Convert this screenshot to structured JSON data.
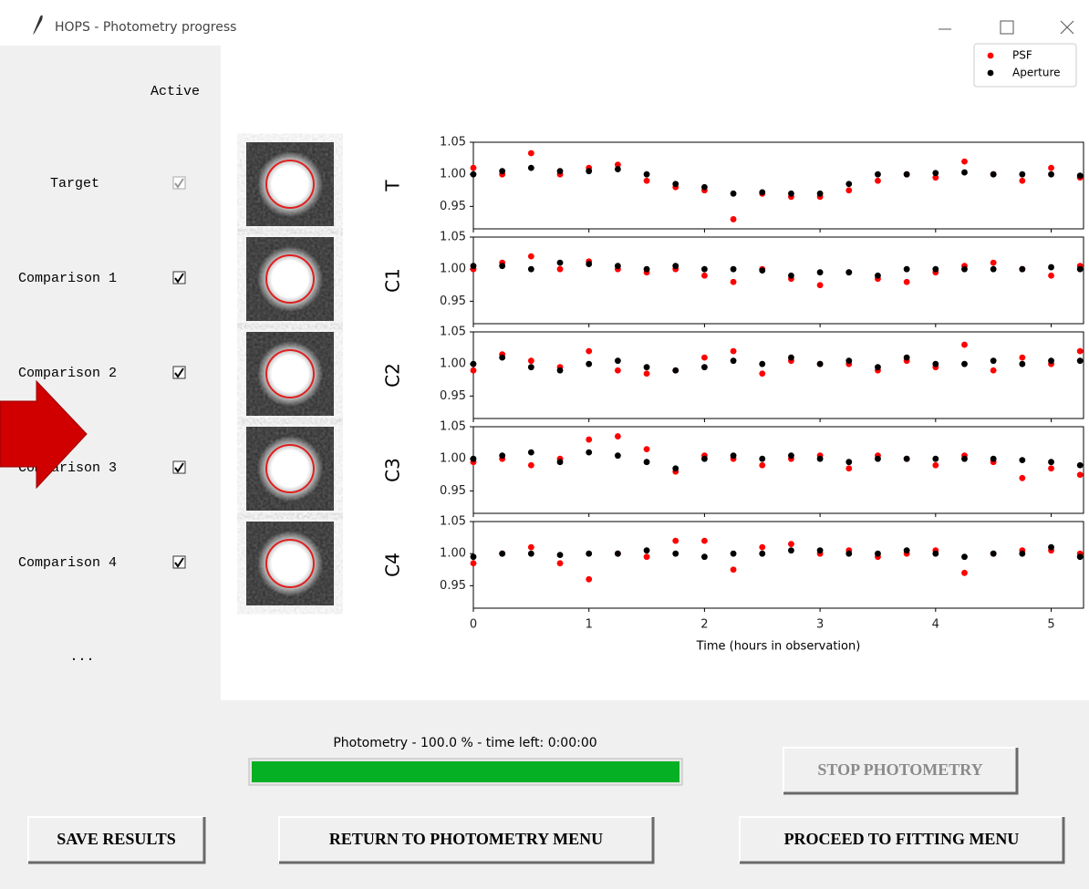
{
  "window": {
    "title": "HOPS - Photometry progress"
  },
  "rows": {
    "header": "Active",
    "labels": [
      "Target",
      "Comparison 1",
      "Comparison 2",
      "Comparison 3",
      "Comparison 4"
    ],
    "more": "..."
  },
  "progress": {
    "label": "Photometry - 100.0 % - time left: 0:00:00"
  },
  "buttons": {
    "stop": "STOP PHOTOMETRY",
    "save": "SAVE RESULTS",
    "return": "RETURN TO PHOTOMETRY MENU",
    "proceed": "PROCEED TO FITTING MENU"
  },
  "chart_data": [
    {
      "type": "scatter",
      "ylabel": "T",
      "legend": "upper right",
      "x": [
        0,
        0.25,
        0.5,
        0.75,
        1,
        1.25,
        1.5,
        1.75,
        2,
        2.25,
        2.5,
        2.75,
        3,
        3.25,
        3.5,
        3.75,
        4,
        4.25,
        4.5,
        4.75,
        5,
        5.25
      ],
      "series": [
        {
          "name": "PSF",
          "color": "#ff0000",
          "values": [
            1.01,
            1.0,
            1.033,
            1.0,
            1.01,
            1.015,
            0.99,
            0.98,
            0.975,
            0.93,
            0.97,
            0.965,
            0.965,
            0.975,
            0.99,
            1.0,
            0.995,
            1.02,
            1.0,
            0.99,
            1.01,
            0.995
          ]
        },
        {
          "name": "Aperture",
          "color": "#000000",
          "values": [
            1.0,
            1.005,
            1.01,
            1.005,
            1.005,
            1.008,
            1.0,
            0.985,
            0.98,
            0.97,
            0.972,
            0.97,
            0.97,
            0.985,
            1.0,
            1.0,
            1.002,
            1.003,
            1.0,
            1.0,
            1.0,
            0.998
          ]
        }
      ],
      "xlim": [
        0,
        5.28
      ],
      "ylim": [
        0.915,
        1.05
      ],
      "yticks": [
        0.95,
        {
          "value": 1,
          "label": "1.00"
        },
        1.05
      ]
    },
    {
      "type": "scatter",
      "ylabel": "C1",
      "x": [
        0,
        0.25,
        0.5,
        0.75,
        1,
        1.25,
        1.5,
        1.75,
        2,
        2.25,
        2.5,
        2.75,
        3,
        3.25,
        3.5,
        3.75,
        4,
        4.25,
        4.5,
        4.75,
        5,
        5.25
      ],
      "series": [
        {
          "name": "PSF",
          "color": "#ff0000",
          "values": [
            1.0,
            1.01,
            1.02,
            1.0,
            1.012,
            1.0,
            0.995,
            1.0,
            0.99,
            0.98,
            1.0,
            0.985,
            0.975,
            0.995,
            0.985,
            0.98,
            0.995,
            1.005,
            1.01,
            1.0,
            0.99,
            1.005
          ]
        },
        {
          "name": "Aperture",
          "color": "#000000",
          "values": [
            1.005,
            1.005,
            1.0,
            1.01,
            1.008,
            1.005,
            1.0,
            1.005,
            1.0,
            1.0,
            0.998,
            0.99,
            0.995,
            0.995,
            0.99,
            1.0,
            1.0,
            1.0,
            1.0,
            1.0,
            1.003,
            1.0
          ]
        }
      ],
      "xlim": [
        0,
        5.28
      ],
      "ylim": [
        0.915,
        1.05
      ],
      "yticks": [
        0.95,
        {
          "value": 1,
          "label": "1.00"
        },
        1.05
      ]
    },
    {
      "type": "scatter",
      "ylabel": "C2",
      "x": [
        0,
        0.25,
        0.5,
        0.75,
        1,
        1.25,
        1.5,
        1.75,
        2,
        2.25,
        2.5,
        2.75,
        3,
        3.25,
        3.5,
        3.75,
        4,
        4.25,
        4.5,
        4.75,
        5,
        5.25
      ],
      "series": [
        {
          "name": "PSF",
          "color": "#ff0000",
          "values": [
            0.99,
            1.015,
            1.005,
            0.995,
            1.02,
            0.99,
            0.985,
            0.99,
            1.01,
            1.02,
            0.985,
            1.005,
            1.0,
            1.0,
            0.99,
            1.005,
            0.995,
            1.03,
            0.99,
            1.01,
            1.0,
            1.02
          ]
        },
        {
          "name": "Aperture",
          "color": "#000000",
          "values": [
            1.0,
            1.01,
            0.995,
            0.99,
            1.0,
            1.005,
            0.995,
            0.99,
            0.995,
            1.005,
            1.0,
            1.01,
            1.0,
            1.005,
            0.995,
            1.01,
            1.0,
            1.0,
            1.005,
            1.0,
            1.005,
            1.005
          ]
        }
      ],
      "xlim": [
        0,
        5.28
      ],
      "ylim": [
        0.915,
        1.05
      ],
      "yticks": [
        0.95,
        {
          "value": 1,
          "label": "1.00"
        },
        1.05
      ]
    },
    {
      "type": "scatter",
      "ylabel": "C3",
      "x": [
        0,
        0.25,
        0.5,
        0.75,
        1,
        1.25,
        1.5,
        1.75,
        2,
        2.25,
        2.5,
        2.75,
        3,
        3.25,
        3.5,
        3.75,
        4,
        4.25,
        4.5,
        4.75,
        5,
        5.25
      ],
      "series": [
        {
          "name": "PSF",
          "color": "#ff0000",
          "values": [
            0.995,
            1.0,
            0.99,
            1.0,
            1.03,
            1.035,
            1.015,
            0.98,
            1.005,
            1.0,
            0.99,
            1.0,
            1.005,
            0.985,
            1.005,
            1.0,
            0.99,
            1.005,
            0.995,
            0.97,
            0.985,
            0.975
          ]
        },
        {
          "name": "Aperture",
          "color": "#000000",
          "values": [
            1.0,
            1.005,
            1.01,
            0.995,
            1.01,
            1.005,
            0.995,
            0.985,
            1.0,
            1.005,
            1.0,
            1.005,
            1.0,
            0.995,
            1.0,
            1.0,
            1.0,
            1.0,
            1.0,
            0.998,
            0.995,
            0.99
          ]
        }
      ],
      "xlim": [
        0,
        5.28
      ],
      "ylim": [
        0.915,
        1.05
      ],
      "yticks": [
        0.95,
        {
          "value": 1,
          "label": "1.00"
        },
        1.05
      ]
    },
    {
      "type": "scatter",
      "ylabel": "C4",
      "xlabel": "Time (hours in observation)",
      "x": [
        0,
        0.25,
        0.5,
        0.75,
        1,
        1.25,
        1.5,
        1.75,
        2,
        2.25,
        2.5,
        2.75,
        3,
        3.25,
        3.5,
        3.75,
        4,
        4.25,
        4.5,
        4.75,
        5,
        5.25
      ],
      "series": [
        {
          "name": "PSF",
          "color": "#ff0000",
          "values": [
            0.985,
            1.0,
            1.01,
            0.985,
            0.96,
            1.0,
            0.995,
            1.02,
            1.02,
            0.975,
            1.01,
            1.015,
            1.0,
            1.005,
            0.995,
            1.0,
            1.005,
            0.97,
            1.0,
            1.005,
            1.005,
            1.0
          ]
        },
        {
          "name": "Aperture",
          "color": "#000000",
          "values": [
            0.995,
            1.0,
            1.0,
            0.998,
            1.0,
            1.0,
            1.005,
            1.0,
            0.995,
            1.0,
            1.0,
            1.005,
            1.005,
            1.0,
            1.0,
            1.005,
            1.0,
            0.995,
            1.0,
            1.0,
            1.01,
            0.995
          ]
        }
      ],
      "xlim": [
        0,
        5.28
      ],
      "ylim": [
        0.915,
        1.05
      ],
      "yticks": [
        0.95,
        {
          "value": 1,
          "label": "1.00"
        },
        1.05
      ],
      "xticks": [
        0,
        1,
        2,
        3,
        4,
        5
      ]
    }
  ]
}
